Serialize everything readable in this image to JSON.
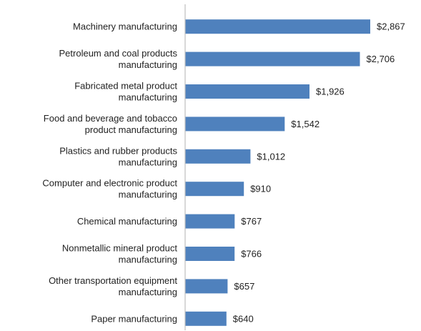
{
  "chart_data": {
    "type": "bar",
    "orientation": "horizontal",
    "categories": [
      [
        "Machinery manufacturing"
      ],
      [
        "Petroleum and coal products",
        "manufacturing"
      ],
      [
        "Fabricated metal product",
        "manufacturing"
      ],
      [
        "Food and beverage and tobacco",
        "product manufacturing"
      ],
      [
        "Plastics and rubber products",
        "manufacturing"
      ],
      [
        "Computer and electronic product",
        "manufacturing"
      ],
      [
        "Chemical manufacturing"
      ],
      [
        "Nonmetallic mineral product",
        "manufacturing"
      ],
      [
        "Other transportation equipment",
        "manufacturing"
      ],
      [
        "Paper manufacturing"
      ]
    ],
    "values": [
      2867,
      2706,
      1926,
      1542,
      1012,
      910,
      767,
      766,
      657,
      640
    ],
    "value_labels": [
      "$2,867",
      "$2,706",
      "$1,926",
      "$1,542",
      "$1,012",
      "$910",
      "$767",
      "$766",
      "$657",
      "$640"
    ],
    "xlim": [
      0,
      3000
    ],
    "grid": false,
    "legend": "none",
    "title": "",
    "xlabel": "",
    "ylabel": "",
    "colors": {
      "bar": "#4F81BD",
      "axis": "#bfbfbf",
      "text": "#222222"
    }
  }
}
